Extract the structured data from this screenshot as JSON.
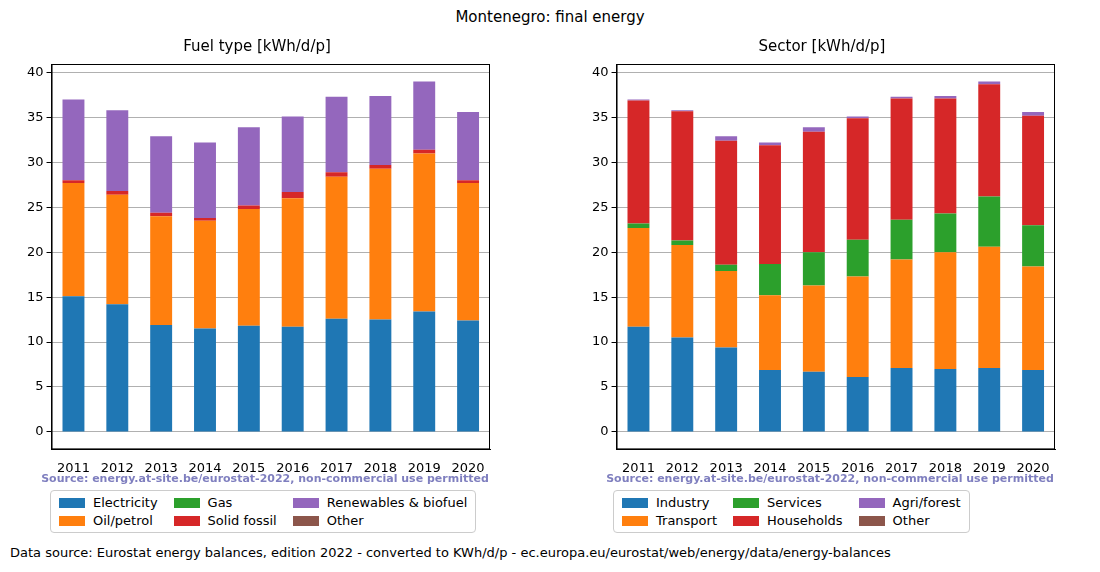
{
  "title": "Montenegro: final energy",
  "note": "Data source: Eurostat energy balances, edition 2022 - converted to KWh/d/p - ec.europa.eu/eurostat/web/energy/data/energy-balances",
  "chart_data": [
    {
      "type": "bar",
      "stacked": true,
      "grid": true,
      "legend": "bottom",
      "title": "Fuel type [kWh/d/p]",
      "source": "Source: energy.at-site.be/eurostat-2022, non-commercial use permitted",
      "categories": [
        "2011",
        "2012",
        "2013",
        "2014",
        "2015",
        "2016",
        "2017",
        "2018",
        "2019",
        "2020"
      ],
      "ylim": [
        -1.95,
        40.95
      ],
      "yticks": [
        0,
        5,
        10,
        15,
        20,
        25,
        30,
        35,
        40
      ],
      "series": [
        {
          "name": "Electricity",
          "color": "#1f77b4",
          "values": [
            15.1,
            14.2,
            11.9,
            11.5,
            11.8,
            11.7,
            12.6,
            12.5,
            13.4,
            12.4
          ]
        },
        {
          "name": "Oil/petrol",
          "color": "#ff7f0e",
          "values": [
            12.6,
            12.2,
            12.1,
            12.0,
            13.0,
            14.3,
            15.8,
            16.8,
            17.6,
            15.3
          ]
        },
        {
          "name": "Gas",
          "color": "#2ca02c",
          "values": [
            0,
            0,
            0,
            0,
            0,
            0,
            0,
            0,
            0,
            0
          ]
        },
        {
          "name": "Solid fossil",
          "color": "#d62728",
          "values": [
            0.3,
            0.4,
            0.4,
            0.3,
            0.4,
            0.7,
            0.5,
            0.4,
            0.4,
            0.3
          ]
        },
        {
          "name": "Renewables & biofuel",
          "color": "#9467bd",
          "values": [
            9.0,
            9.0,
            8.5,
            8.4,
            8.7,
            8.4,
            8.4,
            7.7,
            7.6,
            7.6
          ]
        },
        {
          "name": "Other",
          "color": "#8c564b",
          "values": [
            0,
            0,
            0,
            0,
            0,
            0,
            0,
            0,
            0,
            0
          ]
        }
      ]
    },
    {
      "type": "bar",
      "stacked": true,
      "grid": true,
      "legend": "bottom",
      "title": "Sector [kWh/d/p]",
      "source": "Source: energy.at-site.be/eurostat-2022, non-commercial use permitted",
      "categories": [
        "2011",
        "2012",
        "2013",
        "2014",
        "2015",
        "2016",
        "2017",
        "2018",
        "2019",
        "2020"
      ],
      "ylim": [
        -1.95,
        40.95
      ],
      "yticks": [
        0,
        5,
        10,
        15,
        20,
        25,
        30,
        35,
        40
      ],
      "series": [
        {
          "name": "Industry",
          "color": "#1f77b4",
          "values": [
            11.7,
            10.5,
            9.4,
            6.9,
            6.7,
            6.1,
            7.1,
            7.0,
            7.1,
            6.9
          ]
        },
        {
          "name": "Transport",
          "color": "#ff7f0e",
          "values": [
            11.0,
            10.3,
            8.5,
            8.3,
            9.6,
            11.2,
            12.1,
            13.0,
            13.5,
            11.5
          ]
        },
        {
          "name": "Services",
          "color": "#2ca02c",
          "values": [
            0.5,
            0.5,
            0.7,
            3.5,
            3.7,
            4.1,
            4.4,
            4.3,
            5.6,
            4.6
          ]
        },
        {
          "name": "Households",
          "color": "#d62728",
          "values": [
            13.7,
            14.4,
            13.8,
            13.2,
            13.4,
            13.5,
            13.5,
            12.8,
            12.5,
            12.2
          ]
        },
        {
          "name": "Agri/forest",
          "color": "#9467bd",
          "values": [
            0.1,
            0.1,
            0.5,
            0.3,
            0.5,
            0.2,
            0.2,
            0.3,
            0.3,
            0.4
          ]
        },
        {
          "name": "Other",
          "color": "#8c564b",
          "values": [
            0,
            0,
            0,
            0,
            0,
            0,
            0,
            0,
            0,
            0
          ]
        }
      ]
    }
  ]
}
